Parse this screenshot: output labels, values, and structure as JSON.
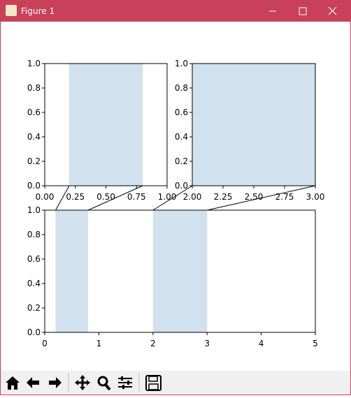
{
  "window_title": "Figure 1",
  "chart_data": [
    {
      "type": "span",
      "color": "#d1e1ed",
      "xlim": [
        0,
        1
      ],
      "ylim": [
        0,
        1
      ],
      "xticks": [
        {
          "value": 0,
          "label": "0.00"
        },
        {
          "value": 0.25,
          "label": "0.25"
        },
        {
          "value": 0.5,
          "label": "0.50"
        },
        {
          "value": 0.75,
          "label": "0.75"
        },
        {
          "value": 1,
          "label": "1.00"
        }
      ],
      "yticks": [
        {
          "value": 0,
          "label": "0.0"
        },
        0.2,
        0.4,
        0.6,
        0.8,
        {
          "value": 1,
          "label": "1.0"
        }
      ],
      "spans": [
        [
          0.2,
          0.8
        ]
      ]
    },
    {
      "type": "span",
      "color": "#d1e1ed",
      "xlim": [
        2,
        3
      ],
      "ylim": [
        0,
        1
      ],
      "xticks": [
        {
          "value": 2,
          "label": "2.00"
        },
        {
          "value": 2.25,
          "label": "2.25"
        },
        {
          "value": 2.5,
          "label": "2.50"
        },
        {
          "value": 2.75,
          "label": "2.75"
        },
        {
          "value": 3,
          "label": "3.00"
        }
      ],
      "yticks": [
        {
          "value": 0,
          "label": "0.0"
        },
        0.2,
        0.4,
        0.6,
        0.8,
        {
          "value": 1,
          "label": "1.0"
        }
      ],
      "spans": [
        [
          2,
          3
        ]
      ]
    },
    {
      "type": "span",
      "color": "#d1e1ed",
      "xlim": [
        0,
        5
      ],
      "ylim": [
        0,
        1
      ],
      "xticks": [
        0,
        1,
        2,
        3,
        4,
        5
      ],
      "yticks": [
        {
          "value": 0,
          "label": "0.0"
        },
        0.2,
        0.4,
        0.6,
        0.8,
        {
          "value": 1,
          "label": "1.0"
        }
      ],
      "spans": [
        [
          0.2,
          0.8
        ],
        [
          2,
          3
        ]
      ]
    }
  ]
}
